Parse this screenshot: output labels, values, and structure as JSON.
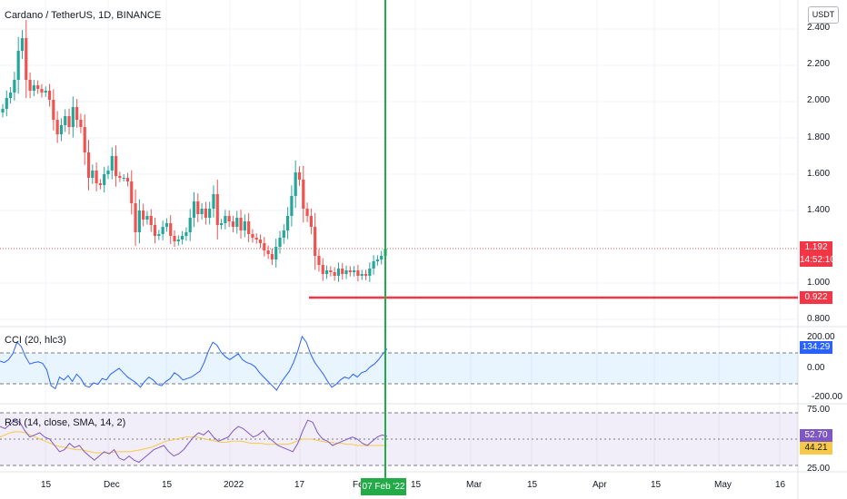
{
  "header": {
    "symbol_title": "Cardano / TetherUS, 1D, BINANCE",
    "currency_button": "USDT"
  },
  "price_scale": {
    "labels": [
      "2.400",
      "2.200",
      "2.000",
      "1.800",
      "1.600",
      "1.400",
      "1.000",
      "0.800"
    ]
  },
  "tags": {
    "last_price": "1.192",
    "countdown": "14:52:10",
    "support_level": "0.922"
  },
  "cci": {
    "title": "CCI (20, hlc3)",
    "scale_labels": [
      "200.00",
      "0.00",
      "-200.00"
    ],
    "current_value": "134.29"
  },
  "rsi": {
    "title": "RSI (14, close, SMA, 14, 2)",
    "scale_labels": [
      "75.00",
      "25.00"
    ],
    "current_value": "52.70",
    "ma_value": "44.21"
  },
  "time_axis": {
    "labels": [
      "15",
      "Dec",
      "15",
      "2022",
      "17",
      "Fe",
      "15",
      "Mar",
      "15",
      "Apr",
      "15",
      "May",
      "16"
    ],
    "cursor_date": "07 Feb '22"
  },
  "colors": {
    "up": "#26a69a",
    "down": "#ef5350",
    "support_line": "#f23645",
    "cursor_line": "#22ab46",
    "cci_line": "#2962ff",
    "rsi_line": "#7e57c2",
    "rsi_ma": "#f7c948",
    "rsi_band": "#7e57c2",
    "cci_band": "#2196f3"
  },
  "chart_data": {
    "type": "candlestick",
    "title": "Cardano / TetherUS, 1D, BINANCE",
    "ylim": [
      0.75,
      2.5
    ],
    "price_ticks": [
      0.8,
      1.0,
      1.4,
      1.6,
      1.8,
      2.0,
      2.2,
      2.4
    ],
    "last_price": 1.192,
    "support_level": 0.922,
    "cursor_date": "07 Feb '22",
    "closes": [
      1.96,
      2.02,
      2.05,
      2.12,
      2.28,
      2.35,
      2.12,
      2.06,
      2.09,
      2.07,
      2.05,
      2.06,
      2.01,
      1.9,
      1.82,
      1.87,
      1.92,
      1.86,
      1.97,
      1.9,
      1.86,
      1.72,
      1.58,
      1.62,
      1.55,
      1.54,
      1.6,
      1.62,
      1.7,
      1.59,
      1.58,
      1.58,
      1.56,
      1.44,
      1.28,
      1.4,
      1.35,
      1.37,
      1.32,
      1.26,
      1.27,
      1.31,
      1.33,
      1.26,
      1.23,
      1.24,
      1.26,
      1.28,
      1.36,
      1.45,
      1.38,
      1.41,
      1.36,
      1.41,
      1.49,
      1.32,
      1.33,
      1.37,
      1.34,
      1.31,
      1.36,
      1.29,
      1.34,
      1.27,
      1.25,
      1.24,
      1.22,
      1.18,
      1.16,
      1.13,
      1.2,
      1.25,
      1.29,
      1.37,
      1.48,
      1.61,
      1.57,
      1.41,
      1.37,
      1.31,
      1.15,
      1.1,
      1.05,
      1.07,
      1.06,
      1.04,
      1.08,
      1.05,
      1.07,
      1.06,
      1.07,
      1.04,
      1.05,
      1.04,
      1.08,
      1.12,
      1.13,
      1.15,
      1.19
    ],
    "cci_values": [
      50,
      40,
      60,
      100,
      180,
      150,
      80,
      30,
      40,
      45,
      35,
      -10,
      -120,
      -140,
      -60,
      -80,
      -50,
      -90,
      -40,
      -70,
      -120,
      -130,
      -100,
      -110,
      -70,
      -80,
      -40,
      -20,
      0,
      -30,
      -60,
      -80,
      -100,
      -130,
      -90,
      -60,
      -80,
      -110,
      -120,
      -90,
      -70,
      -30,
      -50,
      -80,
      -70,
      -60,
      -40,
      -20,
      40,
      120,
      180,
      160,
      110,
      80,
      60,
      80,
      100,
      60,
      40,
      30,
      10,
      -30,
      -60,
      -90,
      -120,
      -150,
      -100,
      -60,
      -20,
      40,
      120,
      220,
      180,
      100,
      40,
      0,
      -40,
      -90,
      -130,
      -110,
      -80,
      -60,
      -70,
      -40,
      -60,
      -30,
      -20,
      10,
      30,
      60,
      100,
      134.29
    ],
    "rsi_values": [
      62,
      60,
      64,
      68,
      66,
      58,
      52,
      54,
      56,
      52,
      50,
      44,
      38,
      40,
      46,
      42,
      44,
      38,
      34,
      30,
      34,
      38,
      36,
      40,
      32,
      30,
      34,
      30,
      28,
      32,
      36,
      40,
      42,
      44,
      38,
      34,
      36,
      40,
      46,
      52,
      56,
      54,
      58,
      52,
      48,
      50,
      52,
      58,
      62,
      60,
      56,
      52,
      54,
      58,
      52,
      48,
      44,
      42,
      40,
      38,
      46,
      58,
      68,
      66,
      56,
      50,
      48,
      44,
      46,
      48,
      50,
      52,
      50,
      46,
      44,
      48,
      52,
      54,
      52.7
    ],
    "rsi_ma_values": [
      52,
      54,
      56,
      57,
      57,
      56,
      54,
      52,
      50,
      48,
      46,
      44,
      43,
      42,
      41,
      40,
      40,
      39,
      38,
      37,
      37,
      37,
      37,
      38,
      38,
      38,
      38,
      39,
      40,
      41,
      42,
      44,
      46,
      48,
      49,
      50,
      51,
      52,
      52,
      52,
      51,
      50,
      49,
      48,
      47,
      47,
      48,
      48,
      48,
      47,
      46,
      46,
      46,
      45,
      45,
      45,
      45,
      45,
      46,
      48,
      50,
      50,
      50,
      49,
      48,
      47,
      47,
      46,
      46,
      45,
      45,
      44,
      44,
      44,
      44,
      44,
      44,
      44.21
    ]
  }
}
